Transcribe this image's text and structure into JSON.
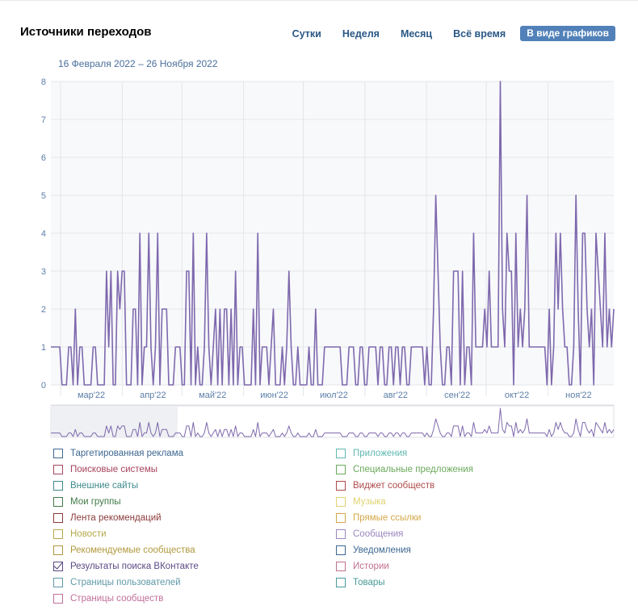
{
  "title": "Источники переходов",
  "periods": [
    "Сутки",
    "Неделя",
    "Месяц",
    "Всё время"
  ],
  "graph_button": "В виде графиков",
  "date_range": "16 Февраля 2022 – 26 Ноября 2022",
  "colors": {
    "line": "#7e68ad",
    "grid": "#e3e6ea",
    "tick": "#5b7ea8",
    "plot_bg": "#f8f9fb"
  },
  "legend_left": [
    {
      "label": "Таргетированная реклама",
      "color": "#3d6791",
      "checked": false
    },
    {
      "label": "Поисковые системы",
      "color": "#a6445e",
      "checked": false
    },
    {
      "label": "Внешние сайты",
      "color": "#3f8a8a",
      "checked": false
    },
    {
      "label": "Мои группы",
      "color": "#3f7a46",
      "checked": false
    },
    {
      "label": "Лента рекомендаций",
      "color": "#8c3b3b",
      "checked": false
    },
    {
      "label": "Новости",
      "color": "#b5a94a",
      "checked": false
    },
    {
      "label": "Рекомендуемые сообщества",
      "color": "#b0983d",
      "checked": false
    },
    {
      "label": "Результаты поиска ВКонтакте",
      "color": "#5b4a85",
      "checked": true
    },
    {
      "label": "Страницы пользователей",
      "color": "#5f98a8",
      "checked": false
    },
    {
      "label": "Страницы сообществ",
      "color": "#c06f9a",
      "checked": false
    }
  ],
  "legend_right": [
    {
      "label": "Приложения",
      "color": "#5fb8b0",
      "checked": false
    },
    {
      "label": "Специальные предложения",
      "color": "#6aa95b",
      "checked": false
    },
    {
      "label": "Виджет сообществ",
      "color": "#b04a4a",
      "checked": false
    },
    {
      "label": "Музыка",
      "color": "#e0d270",
      "checked": false
    },
    {
      "label": "Прямые ссылки",
      "color": "#d4a84a",
      "checked": false
    },
    {
      "label": "Сообщения",
      "color": "#9b86bf",
      "checked": false
    },
    {
      "label": "Уведомления",
      "color": "#3d6791",
      "checked": false
    },
    {
      "label": "Истории",
      "color": "#c07090",
      "checked": false
    },
    {
      "label": "Товары",
      "color": "#4a9a9a",
      "checked": false
    }
  ],
  "chart_data": {
    "type": "line",
    "series": [
      {
        "name": "Результаты поиска ВКонтакте",
        "x_start": "2022-02-16",
        "x_end": "2022-11-26",
        "values": [
          1,
          1,
          1,
          1,
          1,
          0,
          0,
          0,
          1,
          1,
          0,
          2,
          0,
          1,
          1,
          0,
          0,
          0,
          0,
          1,
          1,
          0,
          0,
          0,
          0,
          3,
          1,
          3,
          0,
          0,
          3,
          2,
          3,
          3,
          0,
          0,
          0,
          2,
          2,
          0,
          4,
          0,
          1,
          1,
          4,
          1,
          0,
          1,
          4,
          0,
          2,
          2,
          2,
          0,
          0,
          0,
          1,
          1,
          1,
          0,
          0,
          3,
          3,
          0,
          4,
          0,
          1,
          0,
          0,
          1,
          4,
          1,
          0,
          1,
          2,
          0,
          2,
          0,
          2,
          2,
          0,
          2,
          0,
          3,
          0,
          1,
          1,
          0,
          0,
          0,
          0,
          2,
          0,
          4,
          0,
          1,
          1,
          1,
          0,
          1,
          2,
          0,
          0,
          0,
          1,
          0,
          1,
          3,
          1,
          0,
          0,
          1,
          0,
          0,
          0,
          0,
          1,
          0,
          0,
          2,
          0,
          0,
          0,
          1,
          1,
          1,
          1,
          1,
          1,
          1,
          1,
          0,
          0,
          0,
          1,
          1,
          1,
          0,
          0,
          1,
          1,
          0,
          0,
          1,
          1,
          1,
          1,
          0,
          1,
          1,
          0,
          0,
          1,
          1,
          0,
          1,
          1,
          0,
          1,
          1,
          0,
          0,
          1,
          1,
          1,
          1,
          1,
          1,
          0,
          1,
          0,
          0,
          2,
          5,
          3,
          1,
          0,
          0,
          1,
          1,
          0,
          3,
          3,
          3,
          0,
          3,
          0,
          1,
          1,
          0,
          4,
          1,
          1,
          1,
          1,
          2,
          1,
          3,
          1,
          1,
          1,
          1,
          8,
          2,
          1,
          4,
          3,
          3,
          0,
          4,
          1,
          2,
          1,
          2,
          5,
          1,
          1,
          1,
          1,
          1,
          1,
          1,
          1,
          0,
          2,
          0,
          1,
          4,
          2,
          4,
          2,
          1,
          1,
          0,
          0,
          1,
          5,
          2,
          0,
          4,
          4,
          2,
          1,
          2,
          0,
          4,
          3,
          2,
          1,
          4,
          1,
          2,
          1,
          2
        ]
      }
    ],
    "x_ticks": [
      "мар'22",
      "апр'22",
      "май'22",
      "июн'22",
      "июл'22",
      "авг'22",
      "сен'22",
      "окт'22",
      "ноя'22"
    ],
    "x_tick_dates": [
      "2022-03-01",
      "2022-04-01",
      "2022-05-01",
      "2022-06-01",
      "2022-07-01",
      "2022-08-01",
      "2022-09-01",
      "2022-10-01",
      "2022-11-01"
    ],
    "y_ticks": [
      0,
      1,
      2,
      3,
      4,
      5,
      6,
      7,
      8
    ],
    "ylim": [
      0,
      8
    ],
    "grid": true,
    "navigator": {
      "selected_from": "2022-02-16",
      "selected_to": "2022-11-26"
    }
  }
}
